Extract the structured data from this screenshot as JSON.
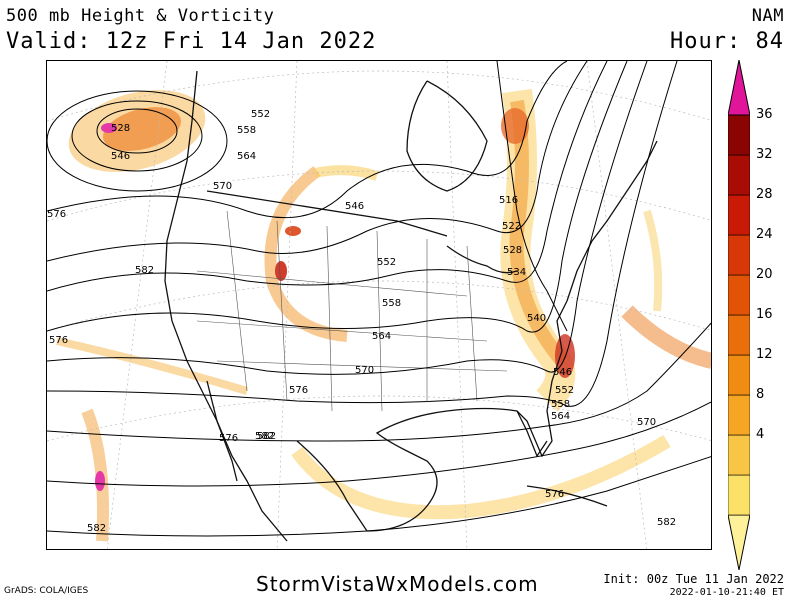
{
  "header": {
    "title": "500 mb Height & Vorticity",
    "valid": "Valid: 12z Fri 14 Jan 2022",
    "model": "NAM",
    "hour": "Hour: 84"
  },
  "footer": {
    "credit": "GrADS: COLA/IGES",
    "site": "StormVistaWxModels.com",
    "init": "Init: 00z Tue 11 Jan 2022",
    "stamp": "2022-01-10-21:40 ET"
  },
  "colorbar": {
    "ticks": [
      "36",
      "32",
      "28",
      "24",
      "20",
      "16",
      "12",
      "8",
      "4"
    ],
    "colors": [
      "#fff09a",
      "#fde068",
      "#f9c545",
      "#f6a623",
      "#f08c12",
      "#ea6f0c",
      "#e25308",
      "#d83808",
      "#c81a06",
      "#a90c04",
      "#8a0404",
      "#e0159a"
    ]
  },
  "contours": {
    "labels": [
      "552",
      "558",
      "564",
      "570",
      "576",
      "576",
      "582",
      "546",
      "528",
      "546",
      "552",
      "558",
      "564",
      "570",
      "576",
      "582",
      "516",
      "522",
      "528",
      "534",
      "540",
      "546",
      "552",
      "558",
      "564",
      "570",
      "582",
      "576",
      "582",
      "576",
      "582"
    ]
  }
}
